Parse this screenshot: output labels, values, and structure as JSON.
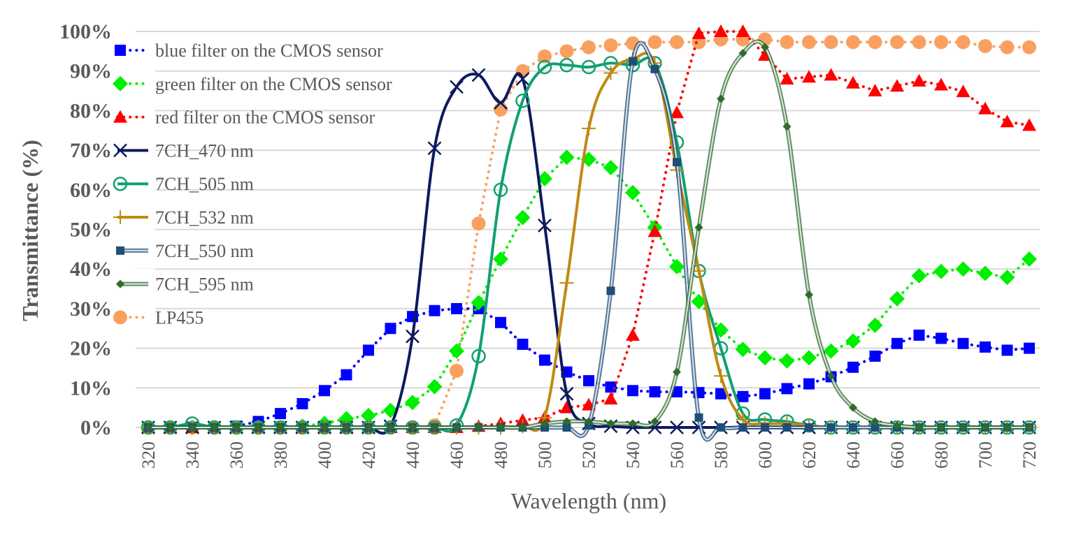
{
  "chart_data": {
    "type": "line",
    "title": "",
    "xlabel": "Wavelength (nm)",
    "ylabel": "Transmittance (%)",
    "xlim": [
      320,
      720
    ],
    "ylim": [
      0,
      100
    ],
    "x_ticks": [
      "320",
      "340",
      "360",
      "380",
      "400",
      "420",
      "440",
      "460",
      "480",
      "500",
      "520",
      "540",
      "560",
      "580",
      "600",
      "620",
      "640",
      "660",
      "680",
      "700",
      "720"
    ],
    "y_ticks": [
      "0%",
      "10%",
      "20%",
      "30%",
      "40%",
      "50%",
      "60%",
      "70%",
      "80%",
      "90%",
      "100%"
    ],
    "grid": "horizontal",
    "legend_position": "top-left",
    "x": [
      320,
      330,
      340,
      350,
      360,
      370,
      380,
      390,
      400,
      410,
      420,
      430,
      440,
      450,
      460,
      470,
      480,
      490,
      500,
      510,
      520,
      530,
      540,
      550,
      560,
      570,
      580,
      590,
      600,
      610,
      620,
      630,
      640,
      650,
      660,
      670,
      680,
      690,
      700,
      710,
      720
    ],
    "series": [
      {
        "name": "blue filter on the CMOS sensor",
        "color": "#0000ff",
        "marker": "square",
        "style": "dotted",
        "smooth": false,
        "values": [
          0,
          0,
          0,
          0,
          0.3,
          1.5,
          3.5,
          6,
          9.3,
          13.3,
          19.5,
          25,
          28,
          29.5,
          30,
          30,
          26.5,
          21,
          17,
          14,
          11.8,
          10.2,
          9.3,
          9,
          9,
          8.8,
          8.5,
          7.8,
          8.5,
          9.8,
          11,
          12.8,
          15.2,
          18,
          21.2,
          23.3,
          22.5,
          21.2,
          20.3,
          19.5,
          20
        ]
      },
      {
        "name": "green filter on the CMOS sensor",
        "color": "#00ee00",
        "marker": "diamond",
        "style": "dotted",
        "smooth": false,
        "values": [
          0,
          0,
          0,
          0,
          0,
          0,
          0,
          0.3,
          1,
          2.2,
          3,
          4.3,
          6.3,
          10.3,
          19.3,
          31.5,
          42.5,
          53,
          62.8,
          68.2,
          67.7,
          65.6,
          59.3,
          50.5,
          40.6,
          31.8,
          24.6,
          19.7,
          17.6,
          16.8,
          17.6,
          19.3,
          21.8,
          25.8,
          32.5,
          38.3,
          39.4,
          40,
          38.9,
          37.9,
          42.5
        ]
      },
      {
        "name": "red filter on the CMOS sensor",
        "color": "#ff0000",
        "marker": "triangle",
        "style": "dotted",
        "smooth": false,
        "values": [
          0,
          0,
          0,
          0,
          0,
          0,
          0,
          0,
          0,
          0,
          0,
          0,
          0,
          0,
          0,
          0.3,
          1,
          1.8,
          2.5,
          5,
          5.7,
          7.2,
          23.3,
          49.5,
          79.5,
          99.5,
          100,
          100,
          94,
          88,
          88.5,
          89,
          87,
          85,
          86.2,
          87.5,
          86.5,
          84.8,
          80.5,
          77.2,
          76.3
        ]
      },
      {
        "name": "7CH_470 nm",
        "color": "#0d1a5e",
        "marker": "x",
        "style": "solid",
        "smooth": true,
        "values": [
          0,
          0,
          0,
          0,
          0,
          0,
          0,
          0,
          0,
          0,
          0,
          0.3,
          23,
          70.5,
          86,
          89,
          82,
          88,
          51,
          8.5,
          1,
          0.3,
          0,
          0,
          0,
          0,
          0,
          0,
          0,
          0,
          0,
          0,
          0,
          0,
          0,
          0,
          0,
          0,
          0,
          0,
          0
        ]
      },
      {
        "name": "7CH_505 nm",
        "color": "#12a070",
        "marker": "circle-open",
        "style": "solid",
        "smooth": true,
        "values": [
          0,
          0,
          1,
          0,
          0,
          0,
          0,
          0,
          0,
          0,
          0,
          0,
          0,
          0,
          0.5,
          18,
          60,
          82.5,
          91,
          91.5,
          91,
          92,
          91.5,
          92,
          72,
          39.5,
          20,
          3.5,
          2,
          1.5,
          0.5,
          0,
          0,
          0,
          0,
          0,
          0,
          0,
          0,
          0,
          0
        ]
      },
      {
        "name": "7CH_532 nm",
        "color": "#bf8a12",
        "marker": "plus",
        "style": "solid",
        "smooth": true,
        "values": [
          0,
          0,
          0,
          0,
          0,
          0,
          0,
          0,
          0,
          0,
          0,
          0,
          0,
          0,
          0,
          0,
          0,
          0.3,
          2.5,
          36.5,
          75.5,
          89.5,
          93,
          92,
          65,
          39.5,
          13,
          2,
          1,
          1,
          0.5,
          0,
          0,
          0,
          0,
          0,
          0,
          0,
          0,
          0,
          0
        ]
      },
      {
        "name": "7CH_550 nm",
        "color": "#1f4e79",
        "marker": "square-small",
        "style": "double",
        "smooth": true,
        "values": [
          0,
          0,
          0,
          0,
          0,
          0,
          0,
          0,
          0,
          0,
          0,
          0,
          0,
          0,
          0,
          0,
          0,
          0,
          0,
          0,
          0.5,
          34.5,
          92.5,
          90.5,
          67,
          2.5,
          0,
          0,
          0,
          0,
          0,
          0,
          0,
          0,
          0,
          0,
          0,
          0,
          0,
          0,
          0
        ]
      },
      {
        "name": "7CH_595 nm",
        "color": "#2e6b2e",
        "marker": "diamond-small",
        "style": "double",
        "smooth": true,
        "values": [
          0,
          0,
          0,
          0,
          0,
          0,
          0,
          0,
          0,
          0,
          0,
          0,
          0,
          0,
          0,
          0,
          0,
          0,
          1,
          1.5,
          1.5,
          1,
          1,
          1.5,
          14,
          50.5,
          83,
          94.5,
          96,
          76,
          33.5,
          13,
          5,
          1.5,
          0.5,
          0,
          0,
          0,
          0,
          0,
          0
        ]
      },
      {
        "name": "LP455",
        "color": "#f9a060",
        "marker": "circle",
        "style": "dotted",
        "smooth": false,
        "values": [
          0,
          0,
          0,
          0,
          0,
          0,
          0,
          0,
          0,
          0,
          0,
          0,
          0,
          0.5,
          14.3,
          51.5,
          80.3,
          90,
          93.7,
          95,
          96,
          96.5,
          97,
          97.3,
          97.3,
          97.3,
          98,
          98,
          98,
          97.3,
          97.3,
          97.3,
          97.3,
          97.3,
          97.3,
          97.3,
          97.3,
          97.3,
          96.3,
          96,
          96
        ]
      }
    ]
  }
}
